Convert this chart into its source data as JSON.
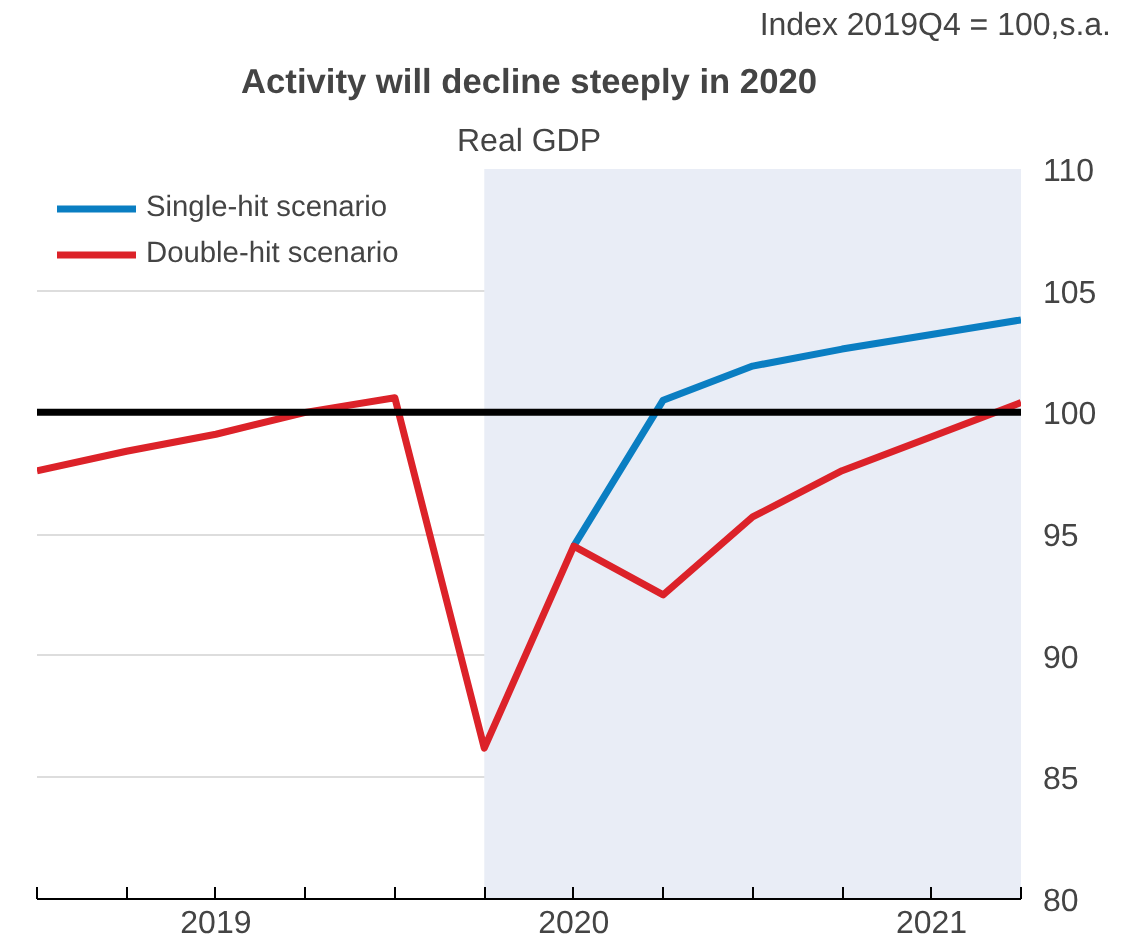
{
  "chart_data": {
    "type": "line",
    "title": "Activity will decline steeply in 2020",
    "subtitle": "Real GDP",
    "ylabel": "Index 2019Q4 = 100,s.a.",
    "x": [
      2019.0,
      2019.25,
      2019.5,
      2019.75,
      2020.0,
      2020.25,
      2020.5,
      2020.75,
      2021.0,
      2021.25,
      2021.5,
      2021.75
    ],
    "series": [
      {
        "name": "Single-hit scenario",
        "color": "#0a7ec2",
        "x": [
          2020.5,
          2020.75,
          2021.0,
          2021.25,
          2021.5,
          2021.75
        ],
        "values": [
          94.5,
          100.5,
          101.9,
          102.6,
          103.2,
          103.8
        ]
      },
      {
        "name": "Double-hit scenario",
        "color": "#dc2229",
        "values": [
          97.6,
          98.4,
          99.1,
          100.0,
          100.6,
          86.2,
          94.5,
          92.5,
          95.7,
          97.6,
          99.0,
          100.4
        ]
      }
    ],
    "xlim": [
      2019.0,
      2021.75
    ],
    "ylim": [
      80,
      110
    ],
    "yticks": [
      80,
      85,
      90,
      95,
      100,
      105,
      110
    ],
    "xticks": [
      {
        "value": 2019.0,
        "label": null
      },
      {
        "value": 2019.25,
        "label": null
      },
      {
        "value": 2019.5,
        "label": "2019"
      },
      {
        "value": 2019.75,
        "label": null
      },
      {
        "value": 2020.0,
        "label": null
      },
      {
        "value": 2020.25,
        "label": null
      },
      {
        "value": 2020.5,
        "label": "2020"
      },
      {
        "value": 2020.75,
        "label": null
      },
      {
        "value": 2021.0,
        "label": null
      },
      {
        "value": 2021.25,
        "label": null
      },
      {
        "value": 2021.5,
        "label": "2021"
      },
      {
        "value": 2021.75,
        "label": null
      }
    ],
    "ref_lines": [
      {
        "axis": "y",
        "value": 100,
        "label": null,
        "color": "#000000"
      }
    ],
    "bands": [
      {
        "axis": "x",
        "from": 2020.25,
        "to": 2021.75,
        "label": null,
        "color": "#e9edf6"
      }
    ],
    "grid": "y",
    "legend": "top left",
    "marker": "none",
    "line_style": "solid"
  }
}
